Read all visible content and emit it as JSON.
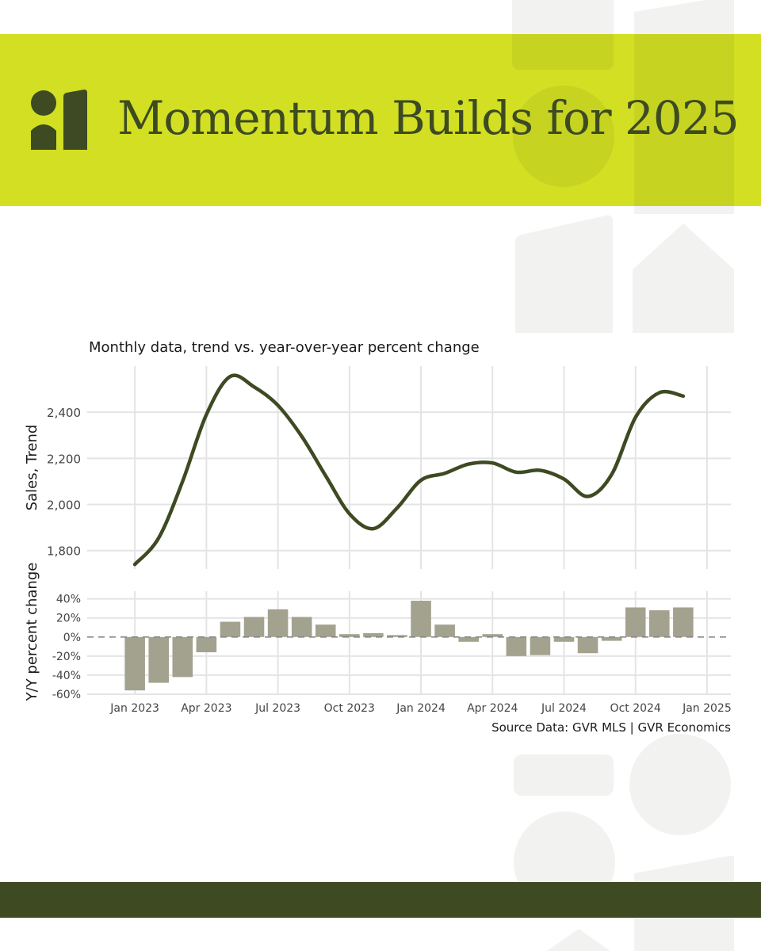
{
  "header": {
    "title": "Momentum Builds for 2025"
  },
  "colors": {
    "banner": "#d2df22",
    "dark_green": "#3d4a22",
    "bar": "#a2a28e",
    "deco": "#f2f2f1"
  },
  "chart_data": {
    "type": "line",
    "subtitle": "Monthly data, trend vs. year-over-year percent change",
    "source": "Source Data: GVR MLS | GVR Economics",
    "x_tick_labels": [
      "Jan 2023",
      "Apr 2023",
      "Jul 2023",
      "Oct 2023",
      "Jan 2024",
      "Apr 2024",
      "Jul 2024",
      "Oct 2024",
      "Jan 2025"
    ],
    "x": [
      "2023-01",
      "2023-02",
      "2023-03",
      "2023-04",
      "2023-05",
      "2023-06",
      "2023-07",
      "2023-08",
      "2023-09",
      "2023-10",
      "2023-11",
      "2023-12",
      "2024-01",
      "2024-02",
      "2024-03",
      "2024-04",
      "2024-05",
      "2024-06",
      "2024-07",
      "2024-08",
      "2024-09",
      "2024-10",
      "2024-11",
      "2024-12"
    ],
    "xlim": [
      "2022-11",
      "2025-02"
    ],
    "top_panel": {
      "type": "line",
      "ylabel": "Sales, Trend",
      "ylim": [
        1720,
        2600
      ],
      "y_ticks": [
        1800,
        2000,
        2200,
        2400
      ],
      "y_tick_labels": [
        "1,800",
        "2,000",
        "2,200",
        "2,400"
      ],
      "series": [
        {
          "values": [
            1740,
            1855,
            2100,
            2390,
            2555,
            2510,
            2430,
            2295,
            2125,
            1960,
            1895,
            1985,
            2105,
            2135,
            2175,
            2180,
            2140,
            2148,
            2110,
            2035,
            2130,
            2378,
            2485,
            2470
          ]
        }
      ]
    },
    "bottom_panel": {
      "type": "bar",
      "ylabel": "Y/Y percent change",
      "ylim": [
        -60,
        48
      ],
      "y_ticks": [
        -60,
        -40,
        -20,
        0,
        20,
        40
      ],
      "y_tick_labels": [
        "-60%",
        "-40%",
        "-20%",
        "0%",
        "20%",
        "40%"
      ],
      "series": [
        {
          "values": [
            -56,
            -48,
            -42,
            -16,
            16,
            21,
            29,
            21,
            13,
            3,
            4,
            2,
            38,
            13,
            -5,
            3,
            -20,
            -19,
            -5,
            -17,
            -4,
            31,
            28,
            31
          ]
        }
      ]
    },
    "grid": true
  }
}
